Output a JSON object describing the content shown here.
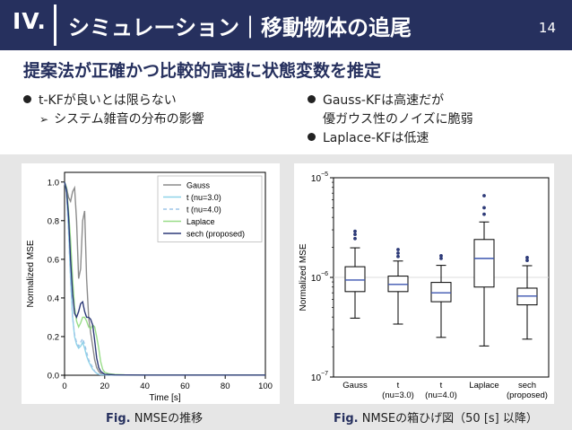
{
  "header": {
    "section": "IV.",
    "title": "シミュレーション｜移動物体の追尾",
    "page": "14"
  },
  "subtitle": "提案法が正確かつ比較的高速に状態変数を推定",
  "left_bullets": {
    "b1": "t-KFが良いとは限らない",
    "sub1": "システム雑音の分布の影響"
  },
  "right_bullets": {
    "b1_line1": "Gauss-KFは高速だが",
    "b1_line2": "優ガウス性のノイズに脆弱",
    "b2": "Laplace-KFは低速"
  },
  "captions": {
    "left_fig": "Fig.",
    "left_text": "NMSEの推移",
    "right_fig": "Fig.",
    "right_text": "NMSEの箱ひげ図（50 [s] 以降）"
  },
  "chart_data": [
    {
      "type": "line",
      "xlabel": "Time [s]",
      "ylabel": "Normalized MSE",
      "xlim": [
        0,
        100
      ],
      "ylim": [
        0,
        1.05
      ],
      "xticks": [
        0,
        20,
        40,
        60,
        80,
        100
      ],
      "yticks": [
        0.0,
        0.2,
        0.4,
        0.6,
        0.8,
        1.0
      ],
      "legend_position": "top-right",
      "series": [
        {
          "name": "Gauss",
          "color": "#8c8c8c",
          "dash": false,
          "x": [
            0,
            1,
            2,
            3,
            4,
            5,
            6,
            7,
            8,
            9,
            10,
            11,
            12,
            13,
            14,
            15,
            16,
            17,
            18,
            19,
            20,
            22,
            25,
            30,
            40,
            60,
            100
          ],
          "y": [
            1.0,
            0.97,
            0.92,
            0.9,
            0.95,
            0.97,
            0.8,
            0.5,
            0.55,
            0.8,
            0.85,
            0.5,
            0.3,
            0.22,
            0.15,
            0.08,
            0.04,
            0.02,
            0.01,
            0.005,
            0.003,
            0.002,
            0.001,
            0.001,
            0.001,
            0.001,
            0.001
          ]
        },
        {
          "name": "t (nu=3.0)",
          "color": "#8fd3e8",
          "dash": false,
          "x": [
            0,
            1,
            2,
            3,
            4,
            5,
            6,
            7,
            8,
            9,
            10,
            11,
            12,
            13,
            14,
            15,
            16,
            17,
            18,
            20,
            25,
            40,
            100
          ],
          "y": [
            1.0,
            0.95,
            0.75,
            0.5,
            0.3,
            0.2,
            0.16,
            0.14,
            0.15,
            0.17,
            0.14,
            0.1,
            0.07,
            0.05,
            0.03,
            0.02,
            0.01,
            0.005,
            0.003,
            0.002,
            0.001,
            0.001,
            0.001
          ]
        },
        {
          "name": "t (nu=4.0)",
          "color": "#9ec6e8",
          "dash": true,
          "x": [
            0,
            1,
            2,
            3,
            4,
            5,
            6,
            7,
            8,
            9,
            10,
            11,
            12,
            13,
            14,
            15,
            16,
            17,
            18,
            20,
            25,
            40,
            100
          ],
          "y": [
            1.0,
            0.94,
            0.74,
            0.5,
            0.3,
            0.21,
            0.17,
            0.15,
            0.17,
            0.19,
            0.16,
            0.12,
            0.08,
            0.06,
            0.04,
            0.02,
            0.01,
            0.005,
            0.003,
            0.002,
            0.001,
            0.001,
            0.001
          ]
        },
        {
          "name": "Laplace",
          "color": "#99dd88",
          "dash": false,
          "x": [
            0,
            1,
            2,
            3,
            4,
            5,
            6,
            7,
            8,
            9,
            10,
            11,
            12,
            13,
            14,
            15,
            16,
            17,
            18,
            19,
            20,
            22,
            25,
            30,
            40,
            100
          ],
          "y": [
            1.0,
            0.97,
            0.85,
            0.7,
            0.5,
            0.35,
            0.28,
            0.25,
            0.27,
            0.3,
            0.3,
            0.28,
            0.25,
            0.24,
            0.26,
            0.25,
            0.2,
            0.14,
            0.07,
            0.03,
            0.015,
            0.008,
            0.004,
            0.002,
            0.001,
            0.001
          ]
        },
        {
          "name": "sech (proposed)",
          "color": "#2d3a78",
          "dash": false,
          "x": [
            0,
            1,
            2,
            3,
            4,
            5,
            6,
            7,
            8,
            9,
            10,
            11,
            12,
            13,
            14,
            15,
            16,
            17,
            18,
            20,
            25,
            40,
            100
          ],
          "y": [
            1.0,
            0.96,
            0.82,
            0.6,
            0.42,
            0.32,
            0.3,
            0.33,
            0.37,
            0.38,
            0.33,
            0.3,
            0.3,
            0.29,
            0.26,
            0.18,
            0.09,
            0.04,
            0.02,
            0.005,
            0.002,
            0.001,
            0.001
          ]
        }
      ]
    },
    {
      "type": "box",
      "ylabel": "Normalized MSE",
      "yscale": "log",
      "ylim": [
        1e-07,
        1e-05
      ],
      "ytick_labels": [
        "10^-5",
        "10^-6",
        "10^-7"
      ],
      "categories": [
        "Gauss",
        "t\n(nu=3.0)",
        "t\n(nu=4.0)",
        "Laplace",
        "sech\n(proposed)"
      ],
      "boxes": [
        {
          "whislo": 3.9e-07,
          "q1": 7.2e-07,
          "med": 9.4e-07,
          "q3": 1.28e-06,
          "whishi": 1.98e-06,
          "fliers": [
            2.45e-06,
            2.7e-06,
            2.9e-06
          ]
        },
        {
          "whislo": 3.4e-07,
          "q1": 7.2e-07,
          "med": 8.5e-07,
          "q3": 1.03e-06,
          "whishi": 1.46e-06,
          "fliers": [
            1.62e-06,
            1.75e-06,
            1.9e-06
          ]
        },
        {
          "whislo": 2.5e-07,
          "q1": 5.7e-07,
          "med": 7e-07,
          "q3": 8.9e-07,
          "whishi": 1.32e-06,
          "fliers": [
            1.55e-06,
            1.65e-06
          ]
        },
        {
          "whislo": 2.05e-07,
          "q1": 8e-07,
          "med": 1.55e-06,
          "q3": 2.4e-06,
          "whishi": 3.6e-06,
          "fliers": [
            4.3e-06,
            5e-06,
            6.6e-06
          ]
        },
        {
          "whislo": 2.4e-07,
          "q1": 5.3e-07,
          "med": 6.5e-07,
          "q3": 7.8e-07,
          "whishi": 1.31e-06,
          "fliers": [
            1.48e-06,
            1.58e-06
          ]
        }
      ]
    }
  ]
}
